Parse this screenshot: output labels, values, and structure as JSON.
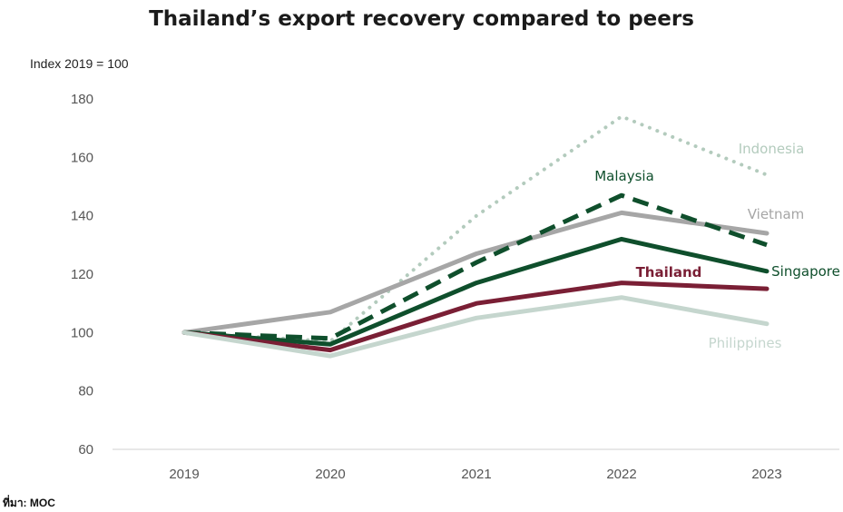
{
  "chart_data": {
    "type": "line",
    "title": "Thailand’s export recovery compared to peers",
    "ylabel": "Index 2019 = 100",
    "xlabel": "",
    "source": "ที่มา: MOC",
    "categories": [
      "2019",
      "2020",
      "2021",
      "2022",
      "2023"
    ],
    "ylim": [
      60,
      180
    ],
    "yticks": [
      60,
      80,
      100,
      120,
      140,
      160,
      180
    ],
    "grid": false,
    "series": [
      {
        "name": "Indonesia",
        "values": [
          100,
          97,
          140,
          174,
          154
        ],
        "color": "#b3cbbd",
        "style": "dotted",
        "bold": false
      },
      {
        "name": "Vietnam",
        "values": [
          100,
          107,
          127,
          141,
          134
        ],
        "color": "#a6a6a6",
        "style": "solid",
        "bold": false
      },
      {
        "name": "Malaysia",
        "values": [
          100,
          98,
          124,
          147,
          130
        ],
        "color": "#0f4f2c",
        "style": "dashed",
        "bold": false
      },
      {
        "name": "Singapore",
        "values": [
          100,
          96,
          117,
          132,
          121
        ],
        "color": "#0f4f2c",
        "style": "solid",
        "bold": false
      },
      {
        "name": "Thailand",
        "values": [
          100,
          94,
          110,
          117,
          115
        ],
        "color": "#7a1f35",
        "style": "solid",
        "bold": true
      },
      {
        "name": "Philippines",
        "values": [
          100,
          92,
          105,
          112,
          103
        ],
        "color": "#c5d6ce",
        "style": "solid",
        "bold": false
      }
    ]
  }
}
